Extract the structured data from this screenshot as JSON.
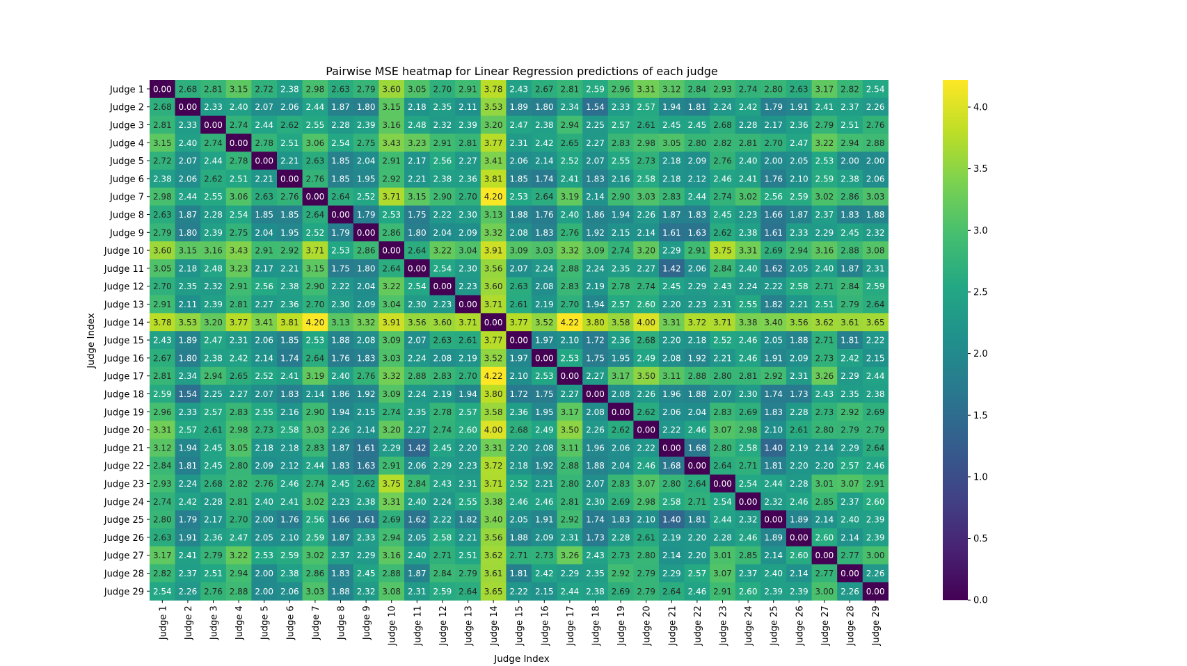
{
  "chart_data": {
    "type": "heatmap",
    "title": "Pairwise MSE heatmap for Linear Regression predictions of each judge",
    "xlabel": "Judge Index",
    "ylabel": "Judge Index",
    "colormap": "viridis",
    "vmin": 0,
    "vmax": 4.22,
    "colorbar_ticks": [
      "0.0",
      "0.5",
      "1.0",
      "1.5",
      "2.0",
      "2.5",
      "3.0",
      "3.5",
      "4.0"
    ],
    "labels": [
      "Judge 1",
      "Judge 2",
      "Judge 3",
      "Judge 4",
      "Judge 5",
      "Judge 6",
      "Judge 7",
      "Judge 8",
      "Judge 9",
      "Judge 10",
      "Judge 11",
      "Judge 12",
      "Judge 13",
      "Judge 14",
      "Judge 15",
      "Judge 16",
      "Judge 17",
      "Judge 18",
      "Judge 19",
      "Judge 20",
      "Judge 21",
      "Judge 22",
      "Judge 23",
      "Judge 24",
      "Judge 25",
      "Judge 26",
      "Judge 27",
      "Judge 28",
      "Judge 29"
    ],
    "matrix": [
      [
        0.0,
        2.68,
        2.81,
        3.15,
        2.72,
        2.38,
        2.98,
        2.63,
        2.79,
        3.6,
        3.05,
        2.7,
        2.91,
        3.78,
        2.43,
        2.67,
        2.81,
        2.59,
        2.96,
        3.31,
        3.12,
        2.84,
        2.93,
        2.74,
        2.8,
        2.63,
        3.17,
        2.82,
        2.54
      ],
      [
        2.68,
        0.0,
        2.33,
        2.4,
        2.07,
        2.06,
        2.44,
        1.87,
        1.8,
        3.15,
        2.18,
        2.35,
        2.11,
        3.53,
        1.89,
        1.8,
        2.34,
        1.54,
        2.33,
        2.57,
        1.94,
        1.81,
        2.24,
        2.42,
        1.79,
        1.91,
        2.41,
        2.37,
        2.26
      ],
      [
        2.81,
        2.33,
        0.0,
        2.74,
        2.44,
        2.62,
        2.55,
        2.28,
        2.39,
        3.16,
        2.48,
        2.32,
        2.39,
        3.2,
        2.47,
        2.38,
        2.94,
        2.25,
        2.57,
        2.61,
        2.45,
        2.45,
        2.68,
        2.28,
        2.17,
        2.36,
        2.79,
        2.51,
        2.76
      ],
      [
        3.15,
        2.4,
        2.74,
        0.0,
        2.78,
        2.51,
        3.06,
        2.54,
        2.75,
        3.43,
        3.23,
        2.91,
        2.81,
        3.77,
        2.31,
        2.42,
        2.65,
        2.27,
        2.83,
        2.98,
        3.05,
        2.8,
        2.82,
        2.81,
        2.7,
        2.47,
        3.22,
        2.94,
        2.88
      ],
      [
        2.72,
        2.07,
        2.44,
        2.78,
        0.0,
        2.21,
        2.63,
        1.85,
        2.04,
        2.91,
        2.17,
        2.56,
        2.27,
        3.41,
        2.06,
        2.14,
        2.52,
        2.07,
        2.55,
        2.73,
        2.18,
        2.09,
        2.76,
        2.4,
        2.0,
        2.05,
        2.53,
        2.0,
        2.0
      ],
      [
        2.38,
        2.06,
        2.62,
        2.51,
        2.21,
        0.0,
        2.76,
        1.85,
        1.95,
        2.92,
        2.21,
        2.38,
        2.36,
        3.81,
        1.85,
        1.74,
        2.41,
        1.83,
        2.16,
        2.58,
        2.18,
        2.12,
        2.46,
        2.41,
        1.76,
        2.1,
        2.59,
        2.38,
        2.06
      ],
      [
        2.98,
        2.44,
        2.55,
        3.06,
        2.63,
        2.76,
        0.0,
        2.64,
        2.52,
        3.71,
        3.15,
        2.9,
        2.7,
        4.2,
        2.53,
        2.64,
        3.19,
        2.14,
        2.9,
        3.03,
        2.83,
        2.44,
        2.74,
        3.02,
        2.56,
        2.59,
        3.02,
        2.86,
        3.03
      ],
      [
        2.63,
        1.87,
        2.28,
        2.54,
        1.85,
        1.85,
        2.64,
        0.0,
        1.79,
        2.53,
        1.75,
        2.22,
        2.3,
        3.13,
        1.88,
        1.76,
        2.4,
        1.86,
        1.94,
        2.26,
        1.87,
        1.83,
        2.45,
        2.23,
        1.66,
        1.87,
        2.37,
        1.83,
        1.88
      ],
      [
        2.79,
        1.8,
        2.39,
        2.75,
        2.04,
        1.95,
        2.52,
        1.79,
        0.0,
        2.86,
        1.8,
        2.04,
        2.09,
        3.32,
        2.08,
        1.83,
        2.76,
        1.92,
        2.15,
        2.14,
        1.61,
        1.63,
        2.62,
        2.38,
        1.61,
        2.33,
        2.29,
        2.45,
        2.32
      ],
      [
        3.6,
        3.15,
        3.16,
        3.43,
        2.91,
        2.92,
        3.71,
        2.53,
        2.86,
        0.0,
        2.64,
        3.22,
        3.04,
        3.91,
        3.09,
        3.03,
        3.32,
        3.09,
        2.74,
        3.2,
        2.29,
        2.91,
        3.75,
        3.31,
        2.69,
        2.94,
        3.16,
        2.88,
        3.08
      ],
      [
        3.05,
        2.18,
        2.48,
        3.23,
        2.17,
        2.21,
        3.15,
        1.75,
        1.8,
        2.64,
        0.0,
        2.54,
        2.3,
        3.56,
        2.07,
        2.24,
        2.88,
        2.24,
        2.35,
        2.27,
        1.42,
        2.06,
        2.84,
        2.4,
        1.62,
        2.05,
        2.4,
        1.87,
        2.31
      ],
      [
        2.7,
        2.35,
        2.32,
        2.91,
        2.56,
        2.38,
        2.9,
        2.22,
        2.04,
        3.22,
        2.54,
        0.0,
        2.23,
        3.6,
        2.63,
        2.08,
        2.83,
        2.19,
        2.78,
        2.74,
        2.45,
        2.29,
        2.43,
        2.24,
        2.22,
        2.58,
        2.71,
        2.84,
        2.59
      ],
      [
        2.91,
        2.11,
        2.39,
        2.81,
        2.27,
        2.36,
        2.7,
        2.3,
        2.09,
        3.04,
        2.3,
        2.23,
        0.0,
        3.71,
        2.61,
        2.19,
        2.7,
        1.94,
        2.57,
        2.6,
        2.2,
        2.23,
        2.31,
        2.55,
        1.82,
        2.21,
        2.51,
        2.79,
        2.64
      ],
      [
        3.78,
        3.53,
        3.2,
        3.77,
        3.41,
        3.81,
        4.2,
        3.13,
        3.32,
        3.91,
        3.56,
        3.6,
        3.71,
        0.0,
        3.77,
        3.52,
        4.22,
        3.8,
        3.58,
        4.0,
        3.31,
        3.72,
        3.71,
        3.38,
        3.4,
        3.56,
        3.62,
        3.61,
        3.65
      ],
      [
        2.43,
        1.89,
        2.47,
        2.31,
        2.06,
        1.85,
        2.53,
        1.88,
        2.08,
        3.09,
        2.07,
        2.63,
        2.61,
        3.77,
        0.0,
        1.97,
        2.1,
        1.72,
        2.36,
        2.68,
        2.2,
        2.18,
        2.52,
        2.46,
        2.05,
        1.88,
        2.71,
        1.81,
        2.22
      ],
      [
        2.67,
        1.8,
        2.38,
        2.42,
        2.14,
        1.74,
        2.64,
        1.76,
        1.83,
        3.03,
        2.24,
        2.08,
        2.19,
        3.52,
        1.97,
        0.0,
        2.53,
        1.75,
        1.95,
        2.49,
        2.08,
        1.92,
        2.21,
        2.46,
        1.91,
        2.09,
        2.73,
        2.42,
        2.15
      ],
      [
        2.81,
        2.34,
        2.94,
        2.65,
        2.52,
        2.41,
        3.19,
        2.4,
        2.76,
        3.32,
        2.88,
        2.83,
        2.7,
        4.22,
        2.1,
        2.53,
        0.0,
        2.27,
        3.17,
        3.5,
        3.11,
        2.88,
        2.8,
        2.81,
        2.92,
        2.31,
        3.26,
        2.29,
        2.44
      ],
      [
        2.59,
        1.54,
        2.25,
        2.27,
        2.07,
        1.83,
        2.14,
        1.86,
        1.92,
        3.09,
        2.24,
        2.19,
        1.94,
        3.8,
        1.72,
        1.75,
        2.27,
        0.0,
        2.08,
        2.26,
        1.96,
        1.88,
        2.07,
        2.3,
        1.74,
        1.73,
        2.43,
        2.35,
        2.38
      ],
      [
        2.96,
        2.33,
        2.57,
        2.83,
        2.55,
        2.16,
        2.9,
        1.94,
        2.15,
        2.74,
        2.35,
        2.78,
        2.57,
        3.58,
        2.36,
        1.95,
        3.17,
        2.08,
        0.0,
        2.62,
        2.06,
        2.04,
        2.83,
        2.69,
        1.83,
        2.28,
        2.73,
        2.92,
        2.69
      ],
      [
        3.31,
        2.57,
        2.61,
        2.98,
        2.73,
        2.58,
        3.03,
        2.26,
        2.14,
        3.2,
        2.27,
        2.74,
        2.6,
        4.0,
        2.68,
        2.49,
        3.5,
        2.26,
        2.62,
        0.0,
        2.22,
        2.46,
        3.07,
        2.98,
        2.1,
        2.61,
        2.8,
        2.79,
        2.79
      ],
      [
        3.12,
        1.94,
        2.45,
        3.05,
        2.18,
        2.18,
        2.83,
        1.87,
        1.61,
        2.29,
        1.42,
        2.45,
        2.2,
        3.31,
        2.2,
        2.08,
        3.11,
        1.96,
        2.06,
        2.22,
        0.0,
        1.68,
        2.8,
        2.58,
        1.4,
        2.19,
        2.14,
        2.29,
        2.64
      ],
      [
        2.84,
        1.81,
        2.45,
        2.8,
        2.09,
        2.12,
        2.44,
        1.83,
        1.63,
        2.91,
        2.06,
        2.29,
        2.23,
        3.72,
        2.18,
        1.92,
        2.88,
        1.88,
        2.04,
        2.46,
        1.68,
        0.0,
        2.64,
        2.71,
        1.81,
        2.2,
        2.2,
        2.57,
        2.46
      ],
      [
        2.93,
        2.24,
        2.68,
        2.82,
        2.76,
        2.46,
        2.74,
        2.45,
        2.62,
        3.75,
        2.84,
        2.43,
        2.31,
        3.71,
        2.52,
        2.21,
        2.8,
        2.07,
        2.83,
        3.07,
        2.8,
        2.64,
        0.0,
        2.54,
        2.44,
        2.28,
        3.01,
        3.07,
        2.91
      ],
      [
        2.74,
        2.42,
        2.28,
        2.81,
        2.4,
        2.41,
        3.02,
        2.23,
        2.38,
        3.31,
        2.4,
        2.24,
        2.55,
        3.38,
        2.46,
        2.46,
        2.81,
        2.3,
        2.69,
        2.98,
        2.58,
        2.71,
        2.54,
        0.0,
        2.32,
        2.46,
        2.85,
        2.37,
        2.6
      ],
      [
        2.8,
        1.79,
        2.17,
        2.7,
        2.0,
        1.76,
        2.56,
        1.66,
        1.61,
        2.69,
        1.62,
        2.22,
        1.82,
        3.4,
        2.05,
        1.91,
        2.92,
        1.74,
        1.83,
        2.1,
        1.4,
        1.81,
        2.44,
        2.32,
        0.0,
        1.89,
        2.14,
        2.4,
        2.39
      ],
      [
        2.63,
        1.91,
        2.36,
        2.47,
        2.05,
        2.1,
        2.59,
        1.87,
        2.33,
        2.94,
        2.05,
        2.58,
        2.21,
        3.56,
        1.88,
        2.09,
        2.31,
        1.73,
        2.28,
        2.61,
        2.19,
        2.2,
        2.28,
        2.46,
        1.89,
        0.0,
        2.6,
        2.14,
        2.39
      ],
      [
        3.17,
        2.41,
        2.79,
        3.22,
        2.53,
        2.59,
        3.02,
        2.37,
        2.29,
        3.16,
        2.4,
        2.71,
        2.51,
        3.62,
        2.71,
        2.73,
        3.26,
        2.43,
        2.73,
        2.8,
        2.14,
        2.2,
        3.01,
        2.85,
        2.14,
        2.6,
        0.0,
        2.77,
        3.0
      ],
      [
        2.82,
        2.37,
        2.51,
        2.94,
        2.0,
        2.38,
        2.86,
        1.83,
        2.45,
        2.88,
        1.87,
        2.84,
        2.79,
        3.61,
        1.81,
        2.42,
        2.29,
        2.35,
        2.92,
        2.79,
        2.29,
        2.57,
        3.07,
        2.37,
        2.4,
        2.14,
        2.77,
        0.0,
        2.26
      ],
      [
        2.54,
        2.26,
        2.76,
        2.88,
        2.0,
        2.06,
        3.03,
        1.88,
        2.32,
        3.08,
        2.31,
        2.59,
        2.64,
        3.65,
        2.22,
        2.15,
        2.44,
        2.38,
        2.69,
        2.79,
        2.64,
        2.46,
        2.91,
        2.6,
        2.39,
        2.39,
        3.0,
        2.26,
        0.0
      ]
    ]
  }
}
